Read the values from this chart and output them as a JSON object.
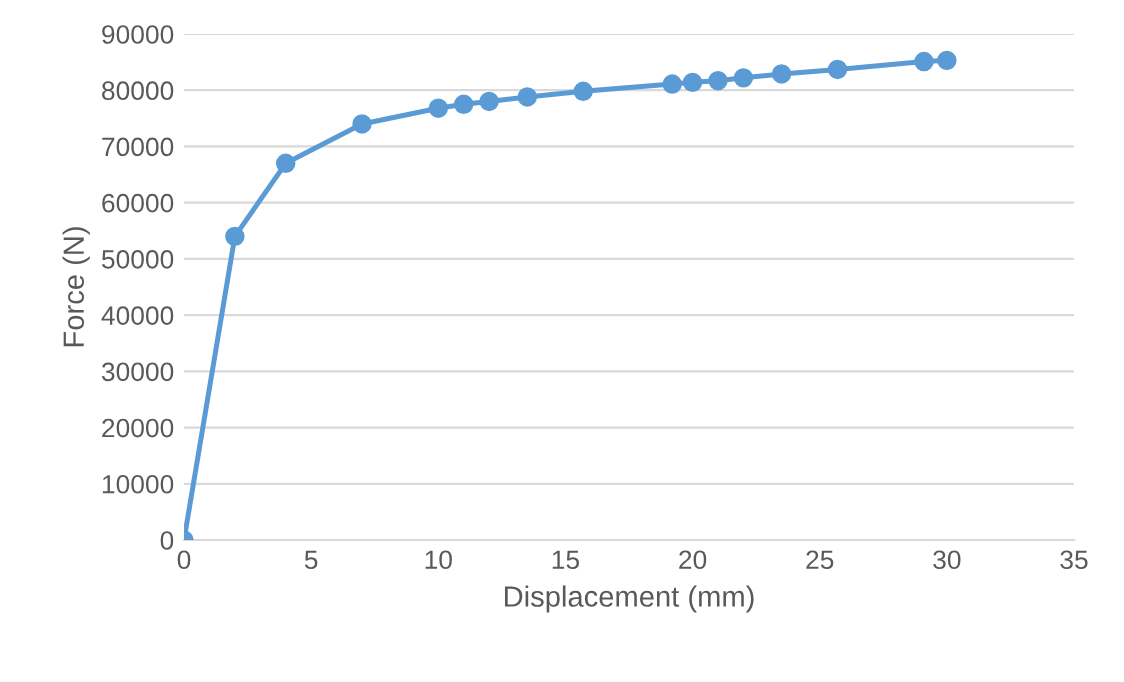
{
  "chart_data": {
    "type": "line",
    "xlabel": "Displacement (mm)",
    "ylabel": "Force (N)",
    "x": [
      0,
      2,
      4,
      7,
      10,
      11,
      12,
      13.5,
      15.7,
      19.2,
      20,
      21,
      22,
      23.5,
      25.7,
      29.1,
      30
    ],
    "series": [
      {
        "color": "#5b9bd5",
        "values": [
          0,
          54000,
          67000,
          74000,
          76800,
          77500,
          78000,
          78800,
          79800,
          81100,
          81400,
          81700,
          82200,
          82900,
          83700,
          85100,
          85300
        ]
      }
    ],
    "xlim": [
      0,
      35
    ],
    "xticks": [
      0,
      5,
      10,
      15,
      20,
      25,
      30,
      35
    ],
    "ylim": [
      0,
      90000
    ],
    "yticks": [
      0,
      10000,
      20000,
      30000,
      40000,
      50000,
      60000,
      70000,
      80000,
      90000
    ],
    "grid": "y",
    "marker": "circle",
    "line_style": "solid",
    "legend": false
  }
}
